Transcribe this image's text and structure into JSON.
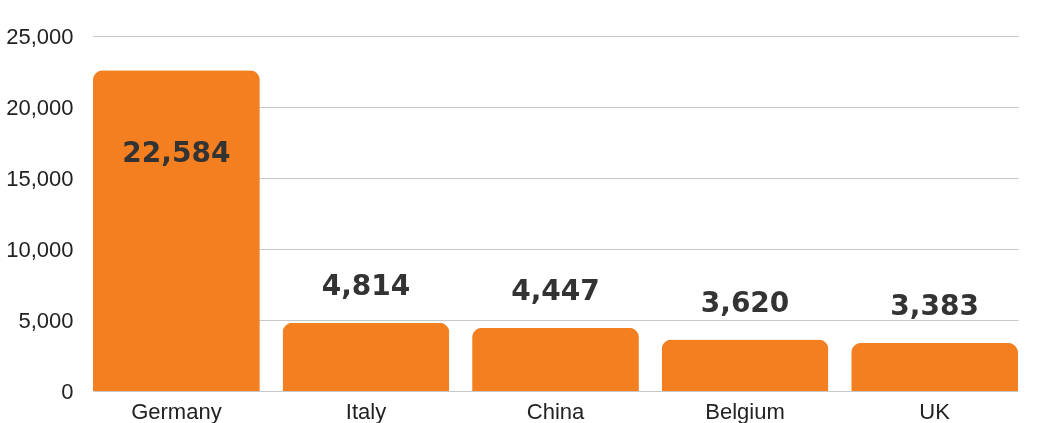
{
  "chart_data": {
    "type": "bar",
    "categories": [
      "Germany",
      "Italy",
      "China",
      "Belgium",
      "UK"
    ],
    "values": [
      22584,
      4814,
      4447,
      3620,
      3383
    ],
    "color": "#f47f20",
    "ylim": [
      0,
      25000
    ],
    "yticks": [
      {
        "value": 0,
        "label": "0"
      },
      {
        "value": 5000,
        "label": "5,000"
      },
      {
        "value": 10000,
        "label": "10,000"
      },
      {
        "value": 15000,
        "label": "15,000"
      },
      {
        "value": 20000,
        "label": "20,000"
      },
      {
        "value": 25000,
        "label": "25,000"
      }
    ],
    "value_labels": [
      "22,584",
      "4,814",
      "4,447",
      "3,620",
      "3,383"
    ],
    "grid": "y"
  }
}
